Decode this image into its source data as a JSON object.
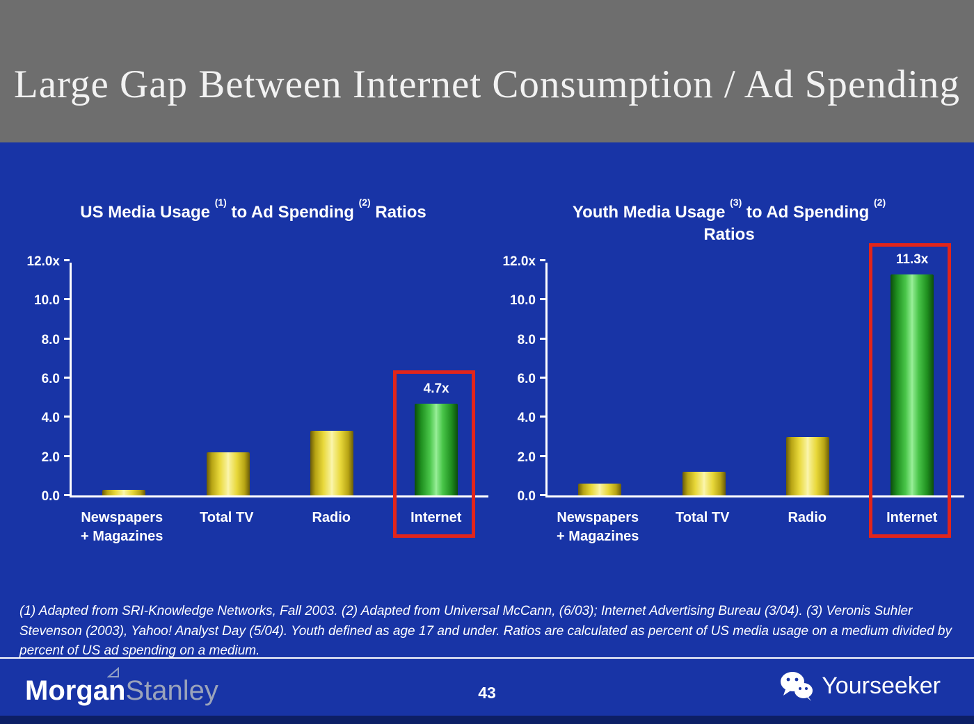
{
  "slide": {
    "title": "Large Gap Between Internet Consumption / Ad Spending",
    "footnote": "(1) Adapted from SRI-Knowledge Networks, Fall 2003.  (2) Adapted from Universal McCann, (6/03); Internet Advertising Bureau (3/04). (3) Veronis Suhler Stevenson (2003), Yahoo! Analyst Day (5/04).  Youth defined as age 17 and under.  Ratios are calculated as percent of US media usage on a medium divided by percent of US ad spending on a medium.",
    "page_number": "43",
    "footer": {
      "brand_morgan": "Morgan",
      "brand_stanley": "Stanley",
      "watermark": "Yourseeker",
      "watermark_icon": "wechat-icon",
      "brand_icon": "triangle-flag-icon"
    },
    "colors": {
      "background_blue": "#1834a6",
      "header_gray": "#6e6e6e",
      "bar_yellow": "#f2e23a",
      "bar_green": "#49c549",
      "highlight_red": "#e1251b",
      "text_white": "#ffffff"
    }
  },
  "chart_data": [
    {
      "type": "bar",
      "title_segments": [
        {
          "text": "US Media Usage "
        },
        {
          "sup": "(1)"
        },
        {
          "text": " to Ad Spending "
        },
        {
          "sup": "(2)"
        },
        {
          "text": " Ratios"
        }
      ],
      "categories": [
        "Newspapers + Magazines",
        "Total TV",
        "Radio",
        "Internet"
      ],
      "category_lines": [
        [
          "Newspapers",
          "+ Magazines"
        ],
        [
          "Total TV"
        ],
        [
          "Radio"
        ],
        [
          "Internet"
        ]
      ],
      "values": [
        0.3,
        2.2,
        3.3,
        4.7
      ],
      "bar_colors": [
        "yellow",
        "yellow",
        "yellow",
        "green"
      ],
      "value_labels": [
        "",
        "",
        "",
        "4.7x"
      ],
      "highlight_index": 3,
      "highlight_box_top_value": 6.5,
      "ylim": [
        0,
        12
      ],
      "yticks": [
        {
          "value": 12,
          "label": "12.0x"
        },
        {
          "value": 10,
          "label": "10.0"
        },
        {
          "value": 8,
          "label": "8.0"
        },
        {
          "value": 6,
          "label": "6.0"
        },
        {
          "value": 4,
          "label": "4.0"
        },
        {
          "value": 2,
          "label": "2.0"
        },
        {
          "value": 0,
          "label": "0.0"
        }
      ]
    },
    {
      "type": "bar",
      "title_segments": [
        {
          "text": "Youth Media Usage "
        },
        {
          "sup": "(3)"
        },
        {
          "text": " to Ad Spending "
        },
        {
          "sup": "(2)"
        },
        {
          "br": true
        },
        {
          "text": "Ratios"
        }
      ],
      "categories": [
        "Newspapers + Magazines",
        "Total TV",
        "Radio",
        "Internet"
      ],
      "category_lines": [
        [
          "Newspapers",
          "+ Magazines"
        ],
        [
          "Total TV"
        ],
        [
          "Radio"
        ],
        [
          "Internet"
        ]
      ],
      "values": [
        0.6,
        1.2,
        3.0,
        11.3
      ],
      "bar_colors": [
        "yellow",
        "yellow",
        "yellow",
        "green"
      ],
      "value_labels": [
        "",
        "",
        "",
        "11.3x"
      ],
      "highlight_index": 3,
      "highlight_box_top_value": 13.0,
      "ylim": [
        0,
        12
      ],
      "yticks": [
        {
          "value": 12,
          "label": "12.0x"
        },
        {
          "value": 10,
          "label": "10.0"
        },
        {
          "value": 8,
          "label": "8.0"
        },
        {
          "value": 6,
          "label": "6.0"
        },
        {
          "value": 4,
          "label": "4.0"
        },
        {
          "value": 2,
          "label": "2.0"
        },
        {
          "value": 0,
          "label": "0.0"
        }
      ]
    }
  ]
}
